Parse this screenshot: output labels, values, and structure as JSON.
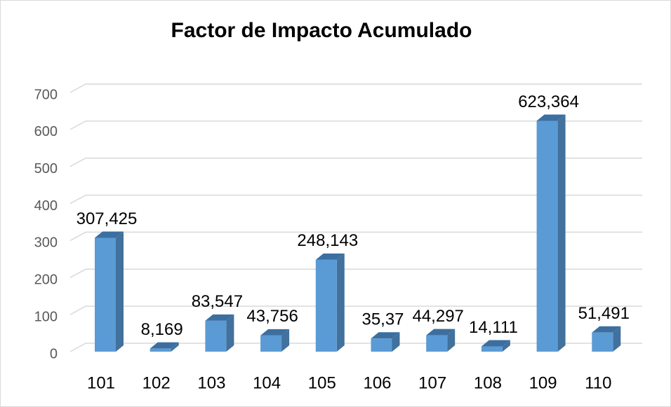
{
  "chart_data": {
    "type": "bar",
    "title": "Factor de Impacto Acumulado",
    "categories": [
      "101",
      "102",
      "103",
      "104",
      "105",
      "106",
      "107",
      "108",
      "109",
      "110"
    ],
    "values": [
      307.425,
      8.169,
      83.547,
      43.756,
      248.143,
      35.37,
      44.297,
      14.111,
      623.364,
      51.491
    ],
    "value_labels": [
      "307,425",
      "8,169",
      "83,547",
      "43,756",
      "248,143",
      "35,37",
      "44,297",
      "14,111",
      "623,364",
      "51,491"
    ],
    "color": "#5b9bd5",
    "ylim": [
      0,
      700
    ],
    "yticks": [
      0,
      100,
      200,
      300,
      400,
      500,
      600,
      700
    ],
    "grid": true
  }
}
